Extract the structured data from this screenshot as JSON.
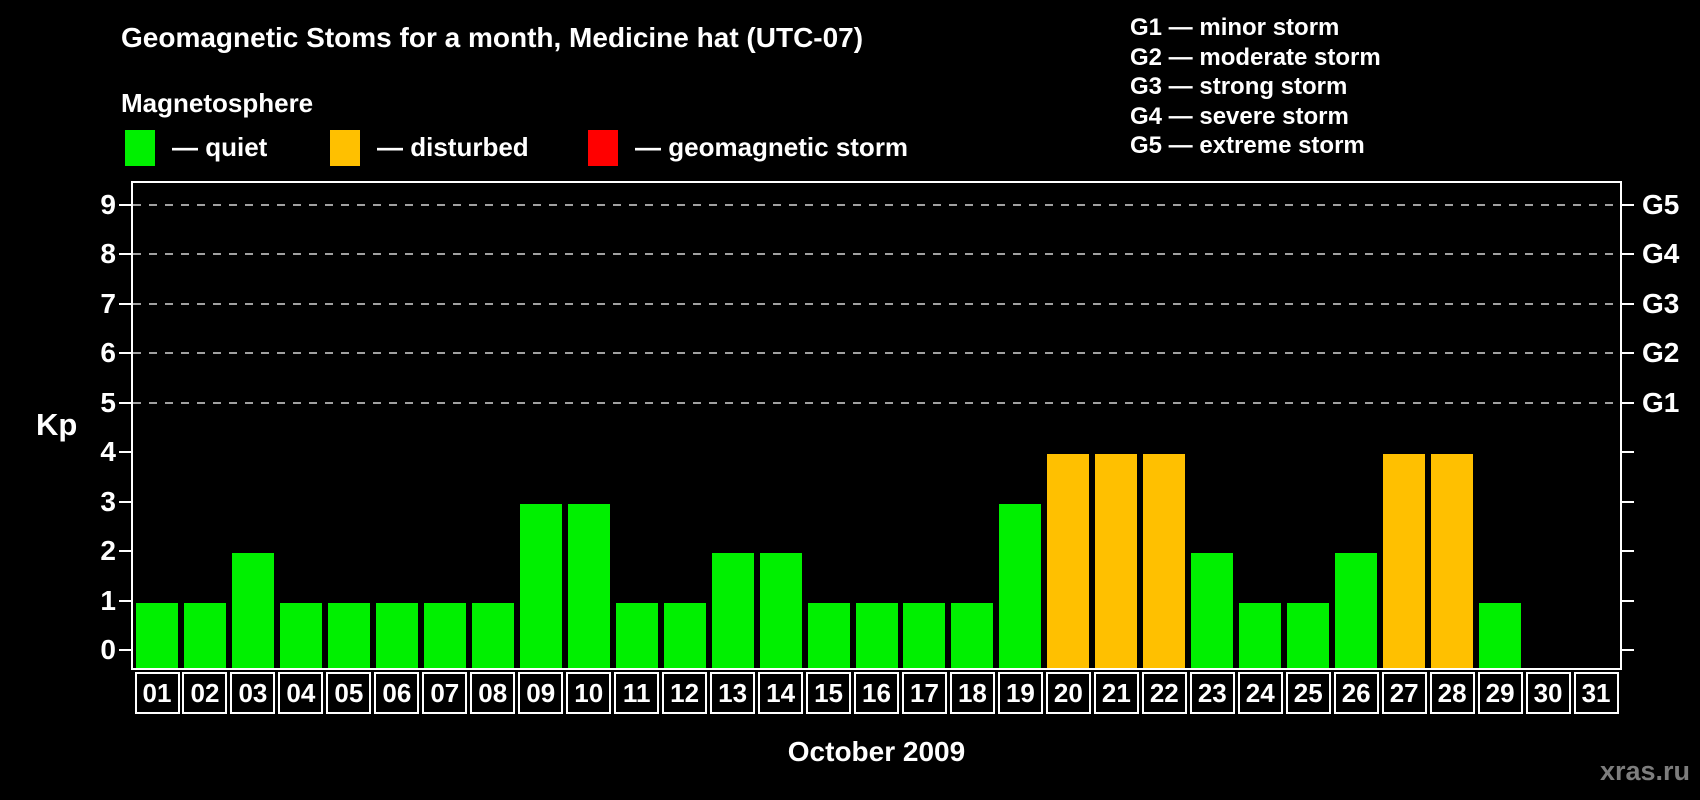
{
  "title": "Geomagnetic Stoms for a month, Medicine hat (UTC-07)",
  "magnetosphere_legend": {
    "heading": "Magnetosphere",
    "items": [
      {
        "name": "quiet",
        "label": "— quiet",
        "color": "#00f000"
      },
      {
        "name": "disturbed",
        "label": "— disturbed",
        "color": "#ffc000"
      },
      {
        "name": "geomagnetic-storm",
        "label": "— geomagnetic storm",
        "color": "#ff0000"
      }
    ]
  },
  "storm_scale_legend": [
    "G1 — minor storm",
    "G2 — moderate storm",
    "G3 — strong storm",
    "G4 — severe storm",
    "G5 — extreme storm"
  ],
  "watermark": "xras.ru",
  "chart_data": {
    "type": "bar",
    "title": "Geomagnetic Stoms for a month, Medicine hat (UTC-07)",
    "xlabel": "October 2009",
    "ylabel": "Kp",
    "ylim": [
      0,
      9
    ],
    "yticks": [
      0,
      1,
      2,
      3,
      4,
      5,
      6,
      7,
      8,
      9
    ],
    "gridlines_at": [
      5,
      6,
      7,
      8,
      9
    ],
    "grid_style": "dashed gray horizontal lines at storm levels G1-G5 only",
    "legend_position": "top",
    "right_axis_labels": [
      {
        "value": 5,
        "label": "G1"
      },
      {
        "value": 6,
        "label": "G2"
      },
      {
        "value": 7,
        "label": "G3"
      },
      {
        "value": 8,
        "label": "G4"
      },
      {
        "value": 9,
        "label": "G5"
      }
    ],
    "categories": [
      "01",
      "02",
      "03",
      "04",
      "05",
      "06",
      "07",
      "08",
      "09",
      "10",
      "11",
      "12",
      "13",
      "14",
      "15",
      "16",
      "17",
      "18",
      "19",
      "20",
      "21",
      "22",
      "23",
      "24",
      "25",
      "26",
      "27",
      "28",
      "29",
      "30",
      "31"
    ],
    "values": [
      1,
      1,
      2,
      1,
      1,
      1,
      1,
      1,
      3,
      3,
      1,
      1,
      2,
      2,
      1,
      1,
      1,
      1,
      3,
      4,
      4,
      4,
      2,
      1,
      1,
      2,
      4,
      4,
      1,
      0,
      0
    ],
    "statuses": [
      "quiet",
      "quiet",
      "quiet",
      "quiet",
      "quiet",
      "quiet",
      "quiet",
      "quiet",
      "quiet",
      "quiet",
      "quiet",
      "quiet",
      "quiet",
      "quiet",
      "quiet",
      "quiet",
      "quiet",
      "quiet",
      "quiet",
      "disturbed",
      "disturbed",
      "disturbed",
      "quiet",
      "quiet",
      "quiet",
      "quiet",
      "disturbed",
      "disturbed",
      "quiet",
      "none",
      "none"
    ],
    "colors": {
      "quiet": "#00f000",
      "disturbed": "#ffc000",
      "geomagnetic-storm": "#ff0000"
    }
  }
}
